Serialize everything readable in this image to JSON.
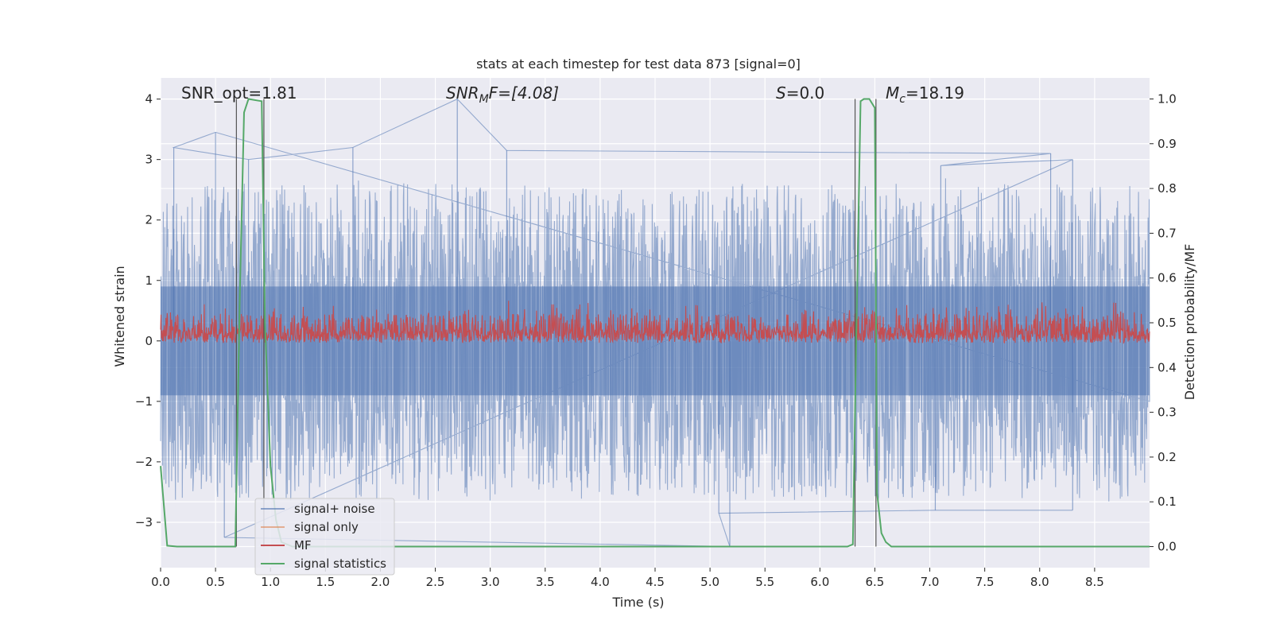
{
  "chart_data": {
    "type": "line",
    "title": "stats at each timestep for test data 873 [signal=0]",
    "xlabel": "Time (s)",
    "ylabel": "Whitened strain",
    "y2label": "Detection probability/MF",
    "xlim": [
      0.0,
      9.0
    ],
    "ylim": [
      -3.75,
      4.35
    ],
    "y2lim": [
      -0.047,
      1.047
    ],
    "xticks": [
      "0.0",
      "0.5",
      "1.0",
      "1.5",
      "2.0",
      "2.5",
      "3.0",
      "3.5",
      "4.0",
      "4.5",
      "5.0",
      "5.5",
      "6.0",
      "6.5",
      "7.0",
      "7.5",
      "8.0",
      "8.5"
    ],
    "yticks": [
      "4",
      "3",
      "2",
      "1",
      "0",
      "−1",
      "−2",
      "−3"
    ],
    "y2ticks": [
      "1.0",
      "0.9",
      "0.8",
      "0.7",
      "0.6",
      "0.5",
      "0.4",
      "0.3",
      "0.2",
      "0.1",
      "0.0"
    ],
    "grid": true,
    "legend_position": "lower-left",
    "annotations": {
      "snr_opt": "SNR_opt=1.81",
      "snr_mf_base": "SNR",
      "snr_mf_sub": "M",
      "snr_mf_tail": "F=[4.08]",
      "s_main": "S",
      "s_tail": "=0.0",
      "mc_main": "M",
      "mc_sub": "c",
      "mc_tail": "=18.19"
    },
    "series": [
      {
        "name": "signal+ noise",
        "color": "#4c72b0",
        "axis": "left",
        "note_values": "dense noise, approx. range -2.7 to 2.8 with spikes to 4.0 and -3.4",
        "spikes": [
          [
            0.5,
            3.45
          ],
          [
            0.12,
            3.2
          ],
          [
            0.8,
            3.0
          ],
          [
            1.75,
            3.2
          ],
          [
            2.7,
            4.0
          ],
          [
            3.15,
            3.15
          ],
          [
            8.1,
            3.1
          ],
          [
            7.1,
            2.9
          ],
          [
            8.3,
            3.0
          ],
          [
            0.58,
            -3.25
          ],
          [
            5.18,
            -3.4
          ],
          [
            5.08,
            -2.85
          ],
          [
            7.05,
            -2.8
          ],
          [
            8.3,
            -2.8
          ]
        ]
      },
      {
        "name": "signal only",
        "color": "#dd8452",
        "axis": "left",
        "values": []
      },
      {
        "name": "MF",
        "color": "#c44e52",
        "axis": "right",
        "note_values": "noise around 0.5, approx. range 0.45 to 0.6"
      },
      {
        "name": "signal statistics",
        "color": "#55a868",
        "axis": "right",
        "x": [
          0.0,
          0.06,
          0.15,
          0.2,
          0.3,
          0.4,
          0.5,
          0.6,
          0.68,
          0.72,
          0.76,
          0.8,
          0.92,
          0.95,
          1.0,
          1.05,
          1.1,
          1.2,
          1.5,
          2.0,
          3.0,
          4.0,
          5.0,
          6.0,
          6.25,
          6.3,
          6.33,
          6.37,
          6.4,
          6.45,
          6.5,
          6.52,
          6.56,
          6.6,
          6.65,
          7.0,
          8.0,
          9.0
        ],
        "y": [
          0.18,
          0.002,
          0.0,
          0.0,
          0.0,
          0.0,
          0.0,
          0.0,
          0.0,
          0.55,
          0.97,
          1.0,
          0.995,
          0.5,
          0.18,
          0.06,
          0.01,
          0.0,
          0.0,
          0.0,
          0.0,
          0.0,
          0.0,
          0.0,
          0.0,
          0.005,
          0.45,
          0.995,
          1.0,
          1.0,
          0.98,
          0.12,
          0.03,
          0.01,
          0.0,
          0.0,
          0.0,
          0.0
        ]
      }
    ],
    "vlines": [
      0.69,
      0.94,
      6.32,
      6.51
    ]
  }
}
